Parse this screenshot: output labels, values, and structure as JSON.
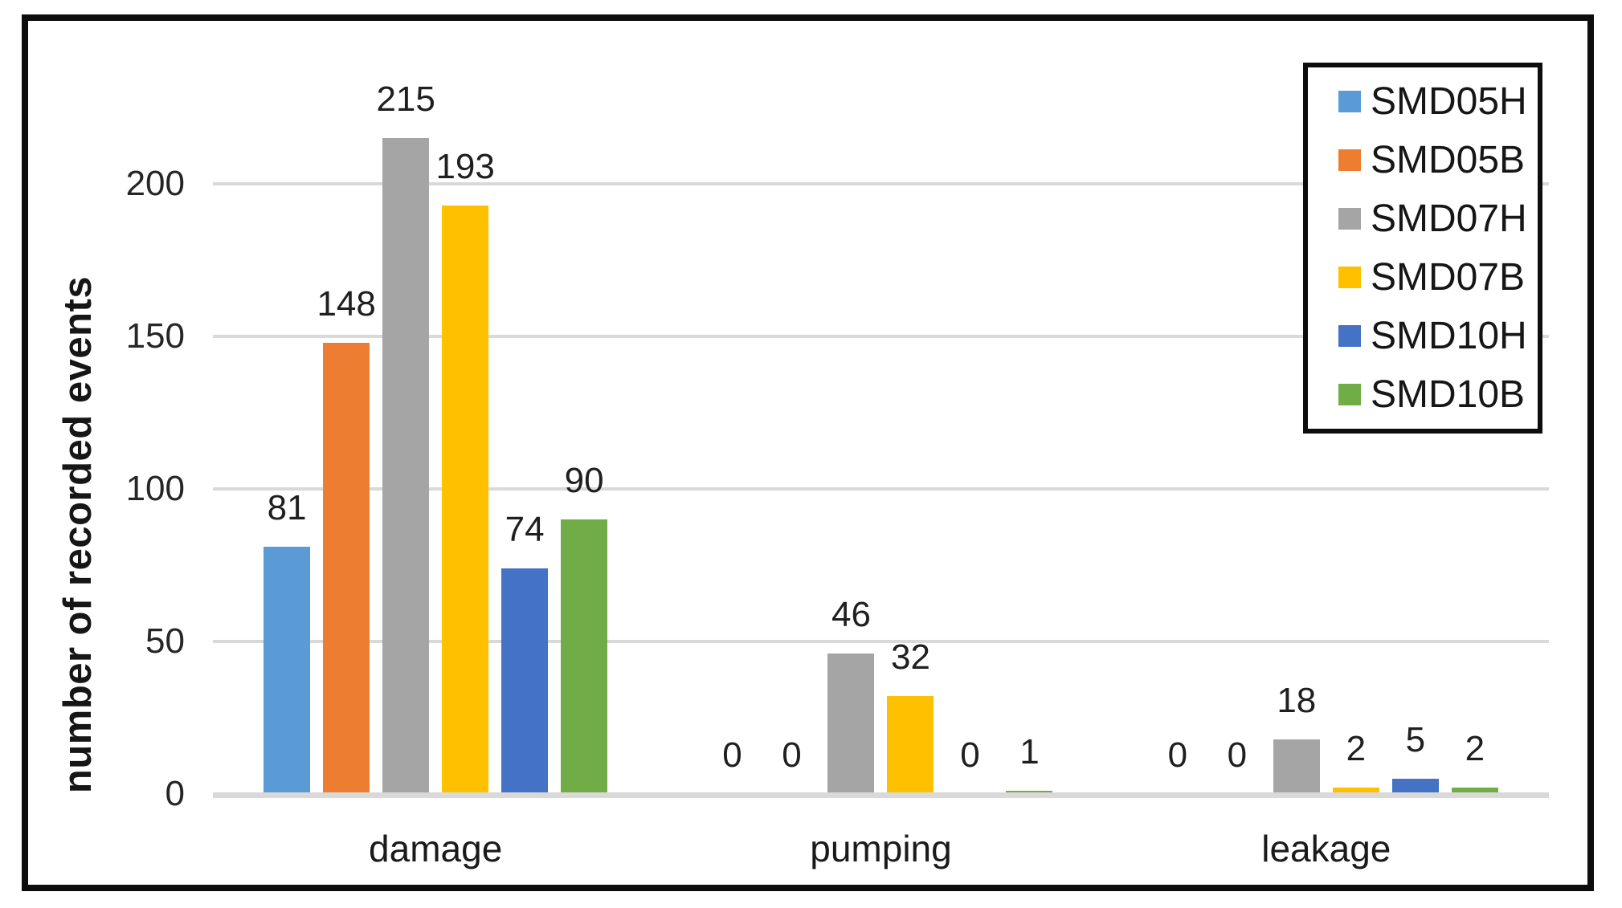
{
  "chart_data": {
    "type": "bar",
    "title": "",
    "xlabel": "",
    "ylabel": "number of recorded events",
    "categories": [
      "damage",
      "pumping",
      "leakage"
    ],
    "series": [
      {
        "name": "SMD05H",
        "color": "#5B9BD5",
        "values": [
          81,
          0,
          0
        ]
      },
      {
        "name": "SMD05B",
        "color": "#ED7D31",
        "values": [
          148,
          0,
          0
        ]
      },
      {
        "name": "SMD07H",
        "color": "#A5A5A5",
        "values": [
          215,
          46,
          18
        ]
      },
      {
        "name": "SMD07B",
        "color": "#FFC000",
        "values": [
          193,
          32,
          2
        ]
      },
      {
        "name": "SMD10H",
        "color": "#4472C4",
        "values": [
          74,
          0,
          5
        ]
      },
      {
        "name": "SMD10B",
        "color": "#70AD47",
        "values": [
          90,
          1,
          2
        ]
      }
    ],
    "yticks": [
      0,
      50,
      100,
      150,
      200
    ],
    "ylim": [
      0,
      220
    ],
    "grid": "horizontal",
    "legend_position": "top-right",
    "data_labels": true
  },
  "colors": {
    "gridline": "#D9D9D9",
    "axis_line": "#D9D9D9",
    "frame_border": "#0D0D0D",
    "label_text": "#1F1F1F",
    "background": "#FFFFFF"
  }
}
